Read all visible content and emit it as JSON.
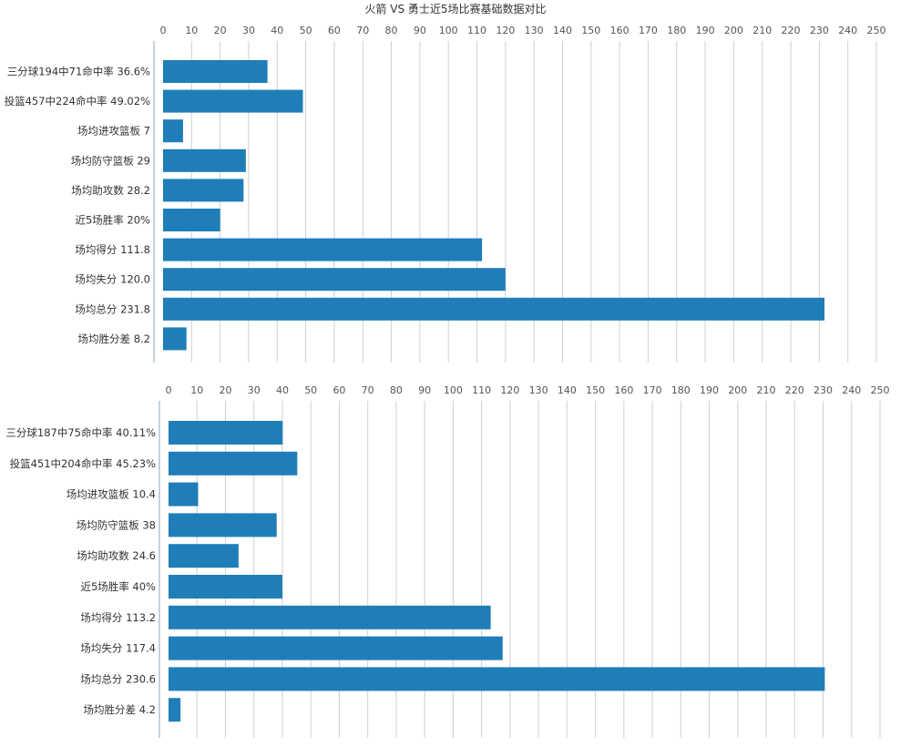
{
  "title": "火箭 VS 勇士近5场比赛基础数据对比",
  "colors": {
    "bar": "#1f7eb8",
    "grid": "#cfcfcf",
    "axis": "#7fa8c9"
  },
  "chart_data": [
    {
      "type": "bar",
      "orientation": "horizontal",
      "categories": [
        "三分球194中71命中率 36.6%",
        "投篮457中224命中率 49.02%",
        "场均进攻篮板 7",
        "场均防守篮板 29",
        "场均助攻数 28.2",
        "近5场胜率 20%",
        "场均得分 111.8",
        "场均失分 120.0",
        "场均总分 231.8",
        "场均胜分差 8.2"
      ],
      "values": [
        36.6,
        49.02,
        7,
        29,
        28.2,
        20,
        111.8,
        120.0,
        231.8,
        8.2
      ],
      "xlim": [
        0,
        250
      ],
      "xticks": [
        0,
        10,
        20,
        30,
        40,
        50,
        60,
        70,
        80,
        90,
        100,
        110,
        120,
        130,
        140,
        150,
        160,
        170,
        180,
        190,
        200,
        210,
        220,
        230,
        240,
        250
      ],
      "grid": true
    },
    {
      "type": "bar",
      "orientation": "horizontal",
      "categories": [
        "三分球187中75命中率 40.11%",
        "投篮451中204命中率 45.23%",
        "场均进攻篮板 10.4",
        "场均防守篮板 38",
        "场均助攻数 24.6",
        "近5场胜率 40%",
        "场均得分 113.2",
        "场均失分 117.4",
        "场均总分 230.6",
        "场均胜分差 4.2"
      ],
      "values": [
        40.11,
        45.23,
        10.4,
        38,
        24.6,
        40,
        113.2,
        117.4,
        230.6,
        4.2
      ],
      "xlim": [
        0,
        250
      ],
      "xticks": [
        0,
        10,
        20,
        30,
        40,
        50,
        60,
        70,
        80,
        90,
        100,
        110,
        120,
        130,
        140,
        150,
        160,
        170,
        180,
        190,
        200,
        210,
        220,
        230,
        240,
        250
      ],
      "grid": true
    }
  ]
}
